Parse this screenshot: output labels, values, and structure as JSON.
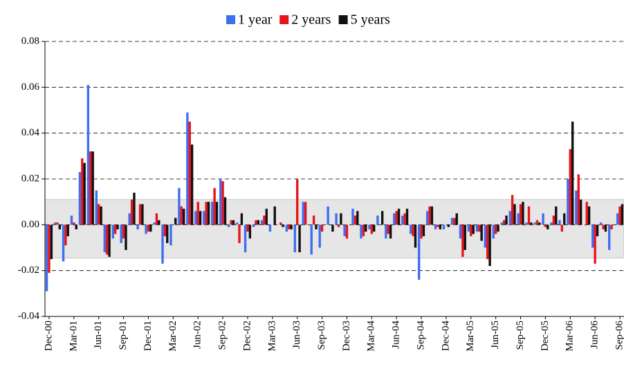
{
  "chart_data": {
    "type": "bar",
    "categories": [
      "Dec-00",
      null,
      null,
      "Mar-01",
      null,
      null,
      "Jun-01",
      null,
      null,
      "Sep-01",
      null,
      null,
      "Dec-01",
      null,
      null,
      "Mar-02",
      null,
      null,
      "Jun-02",
      null,
      null,
      "Sep-02",
      null,
      null,
      "Dec-02",
      null,
      null,
      "Mar-03",
      null,
      null,
      "Jun-03",
      null,
      null,
      "Sep-03",
      null,
      null,
      "Dec-03",
      null,
      null,
      "Mar-04",
      null,
      null,
      "Jun-04",
      null,
      null,
      "Sep-04",
      null,
      null,
      "Dec-04",
      null,
      null,
      "Mar-05",
      null,
      null,
      "Jun-05",
      null,
      null,
      "Sep-05",
      null,
      null,
      "Dec-05",
      null,
      null,
      "Mar-06",
      null,
      null,
      "Jun-06",
      null,
      null,
      "Sep-06"
    ],
    "series": [
      {
        "name": "1 year",
        "color": "#3f6ef0",
        "values": [
          -0.029,
          0.001,
          -0.016,
          0.004,
          0.023,
          0.061,
          0.015,
          -0.012,
          -0.006,
          -0.008,
          0.005,
          -0.002,
          -0.004,
          0.001,
          -0.017,
          -0.009,
          0.016,
          0.049,
          0.006,
          0.006,
          0.01,
          0.02,
          -0.001,
          0.001,
          -0.012,
          -0.001,
          0.002,
          -0.003,
          0.0,
          -0.003,
          -0.012,
          0.01,
          -0.013,
          -0.01,
          0.008,
          0.005,
          -0.005,
          0.007,
          -0.006,
          -0.002,
          0.004,
          -0.006,
          0.005,
          0.004,
          -0.004,
          -0.024,
          0.006,
          -0.002,
          -0.002,
          0.003,
          -0.006,
          -0.003,
          -0.003,
          -0.01,
          -0.006,
          0.001,
          0.006,
          0.005,
          0.001,
          0.001,
          0.005,
          0.001,
          0.002,
          0.02,
          0.015,
          0.0,
          -0.01,
          0.001,
          -0.011,
          0.005
        ]
      },
      {
        "name": "2 years",
        "color": "#e8141c",
        "values": [
          -0.021,
          0.001,
          -0.009,
          0.001,
          0.029,
          0.032,
          0.009,
          -0.013,
          -0.004,
          -0.006,
          0.011,
          0.009,
          -0.003,
          0.005,
          -0.005,
          0.0,
          0.008,
          0.045,
          0.01,
          0.01,
          0.016,
          0.019,
          0.002,
          -0.008,
          -0.003,
          0.002,
          0.004,
          0.0,
          0.001,
          -0.002,
          0.02,
          0.01,
          0.004,
          -0.003,
          0.0,
          -0.001,
          -0.006,
          0.004,
          -0.005,
          -0.004,
          0.0,
          -0.004,
          0.006,
          0.005,
          -0.005,
          -0.006,
          0.008,
          -0.001,
          0.0,
          0.003,
          -0.014,
          -0.005,
          -0.003,
          -0.015,
          -0.004,
          0.002,
          0.013,
          0.009,
          0.008,
          0.002,
          -0.001,
          0.004,
          -0.003,
          0.033,
          0.022,
          0.01,
          -0.017,
          -0.002,
          -0.002,
          0.008
        ]
      },
      {
        "name": "5 years",
        "color": "#111111",
        "values": [
          -0.015,
          -0.002,
          -0.005,
          -0.002,
          0.027,
          0.032,
          0.008,
          -0.014,
          -0.002,
          -0.011,
          0.014,
          0.009,
          -0.003,
          0.002,
          -0.008,
          0.003,
          0.007,
          0.035,
          0.006,
          0.01,
          0.01,
          0.012,
          0.002,
          0.005,
          -0.006,
          0.002,
          0.007,
          0.008,
          -0.001,
          -0.002,
          -0.012,
          0.0,
          -0.002,
          0.0,
          -0.003,
          0.005,
          0.0,
          0.006,
          -0.003,
          -0.003,
          0.006,
          -0.006,
          0.007,
          0.007,
          -0.01,
          -0.005,
          0.008,
          -0.002,
          -0.001,
          0.005,
          -0.011,
          -0.004,
          -0.007,
          -0.018,
          -0.003,
          0.004,
          0.009,
          0.01,
          0.001,
          0.001,
          -0.002,
          0.008,
          0.005,
          0.045,
          0.011,
          0.008,
          -0.005,
          -0.003,
          0.0,
          0.009
        ]
      }
    ],
    "shaded_range": [
      -0.0145,
      0.011
    ],
    "ylim": [
      -0.04,
      0.08
    ],
    "yticks": [
      -0.04,
      -0.02,
      {
        "value": 0,
        "label": "0.00"
      },
      0.02,
      0.04,
      0.06,
      0.08
    ],
    "grid": true,
    "legend": "top"
  }
}
